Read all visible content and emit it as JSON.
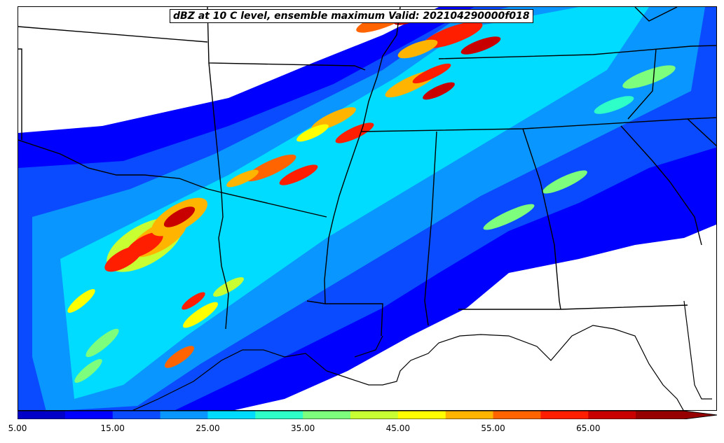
{
  "title": "dBZ at 10 C level, ensemble maximum Valid: 202104290000f018",
  "colorbar": {
    "levels": [
      5,
      10,
      15,
      20,
      25,
      30,
      35,
      40,
      45,
      50,
      55,
      60,
      65,
      70
    ],
    "extend": "max",
    "colors": [
      "#0000c8",
      "#0000ff",
      "#0a4bff",
      "#0a96ff",
      "#00dcff",
      "#2effc8",
      "#7dff7d",
      "#c8ff32",
      "#ffff00",
      "#ffb400",
      "#ff6400",
      "#ff1e00",
      "#c80000",
      "#960000"
    ],
    "tick_labels": [
      "5.00",
      "15.00",
      "25.00",
      "35.00",
      "45.00",
      "55.00",
      "65.00"
    ]
  },
  "map": {
    "region": "Southern United States / Gulf Coast",
    "features": [
      "state boundaries",
      "coastlines",
      "Mississippi River"
    ],
    "background": "#ffffff",
    "outline_color": "#000000"
  }
}
